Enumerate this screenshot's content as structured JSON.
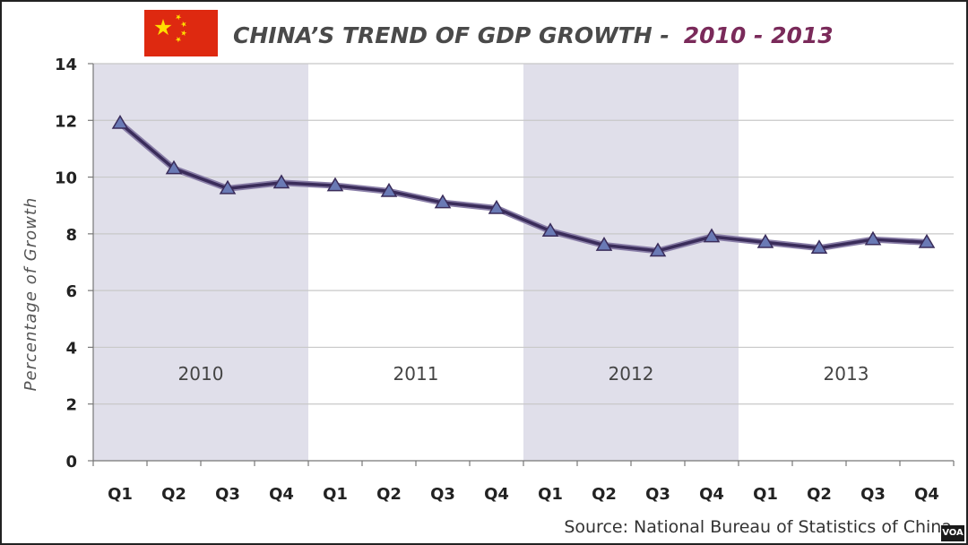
{
  "chart_data": {
    "type": "line",
    "title": "CHINA’S TREND OF GDP GROWTH -",
    "title_years": "2010 -  2013",
    "ylabel": "Percentage of Growth",
    "xlabel": "",
    "ylim": [
      0,
      14
    ],
    "yticks": [
      0,
      2,
      4,
      6,
      8,
      10,
      12,
      14
    ],
    "grid": true,
    "categories": [
      "Q1",
      "Q2",
      "Q3",
      "Q4",
      "Q1",
      "Q2",
      "Q3",
      "Q4",
      "Q1",
      "Q2",
      "Q3",
      "Q4",
      "Q1",
      "Q2",
      "Q3",
      "Q4"
    ],
    "year_groups": [
      {
        "label": "2010",
        "shaded": true
      },
      {
        "label": "2011",
        "shaded": false
      },
      {
        "label": "2012",
        "shaded": true
      },
      {
        "label": "2013",
        "shaded": false
      }
    ],
    "series": [
      {
        "values": [
          11.9,
          10.3,
          9.6,
          9.8,
          9.7,
          9.5,
          9.1,
          8.9,
          8.1,
          7.6,
          7.4,
          7.9,
          7.7,
          7.5,
          7.8,
          7.7
        ]
      }
    ],
    "source": "Source: National Bureau of Statistics of China"
  },
  "colors": {
    "line": "#3a2c5a",
    "marker": "#6a7ab5",
    "shade": "#e0dfea",
    "grid": "#c8c8c8",
    "flag_red": "#de2910",
    "flag_star": "#ffde00"
  },
  "icons": {
    "flag": "china-flag-icon"
  },
  "badge": {
    "label": "VOA"
  }
}
